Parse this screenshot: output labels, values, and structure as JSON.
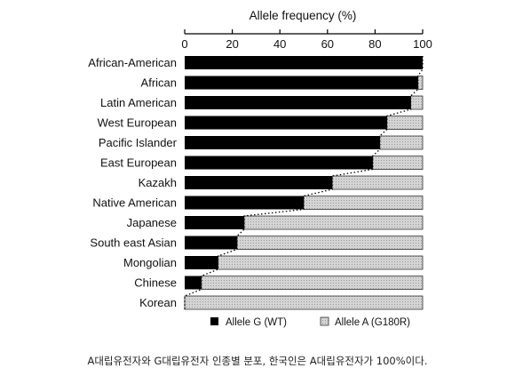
{
  "chart_data": {
    "type": "bar",
    "orientation": "horizontal",
    "stacked": true,
    "xlabel": "Allele frequency (%)",
    "xaxis_position": "top",
    "xlim": [
      0,
      100
    ],
    "xticks": [
      "0",
      "20",
      "40",
      "60",
      "80",
      "100"
    ],
    "categories": [
      "African-American",
      "African",
      "Latin American",
      "West European",
      "Pacific Islander",
      "East European",
      "Kazakh",
      "Native American",
      "Japanese",
      "South east Asian",
      "Mongolian",
      "Chinese",
      "Korean"
    ],
    "series": [
      {
        "name": "Allele G (WT)",
        "color": "#000000",
        "values": [
          100,
          98,
          95,
          85,
          82,
          79,
          62,
          50,
          25,
          22,
          14,
          7,
          0
        ]
      },
      {
        "name": "Allele A (G180R)",
        "color": "#d9d9d9",
        "values": [
          0,
          2,
          5,
          15,
          18,
          21,
          38,
          50,
          75,
          78,
          86,
          93,
          100
        ]
      }
    ],
    "connector_line": "dotted",
    "legend_placement": "bottom-right",
    "grid": false
  },
  "caption": "A대립유전자와 G대립유전자 인종별 분포, 한국인은 A대립유전자가 100%이다."
}
